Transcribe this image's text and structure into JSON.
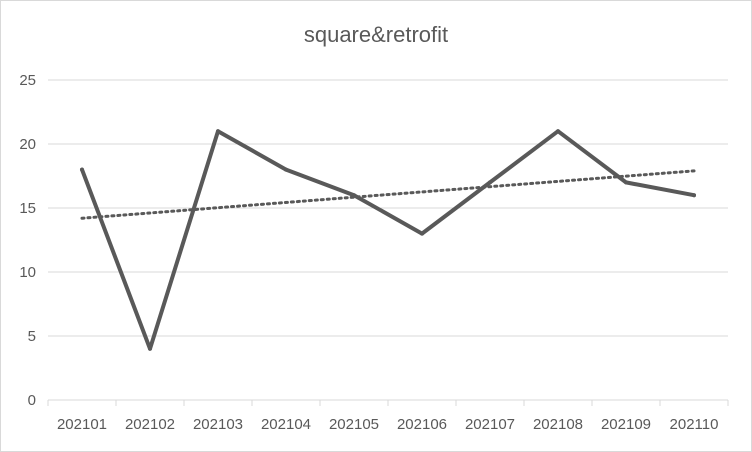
{
  "chart_data": {
    "type": "line",
    "title": "square&retrofit",
    "xlabel": "",
    "ylabel": "",
    "categories": [
      "202101",
      "202102",
      "202103",
      "202104",
      "202105",
      "202106",
      "202107",
      "202108",
      "202109",
      "202110"
    ],
    "series": [
      {
        "values": [
          18,
          4,
          21,
          18,
          16,
          13,
          17,
          21,
          17,
          16
        ],
        "color": "#595959"
      }
    ],
    "trendline": {
      "type": "linear",
      "start": 14.2,
      "end": 17.9,
      "style": "dotted",
      "color": "#595959"
    },
    "ylim": [
      0,
      25
    ],
    "yticks": [
      0,
      5,
      10,
      15,
      20,
      25
    ],
    "grid": true,
    "legend": "none"
  }
}
